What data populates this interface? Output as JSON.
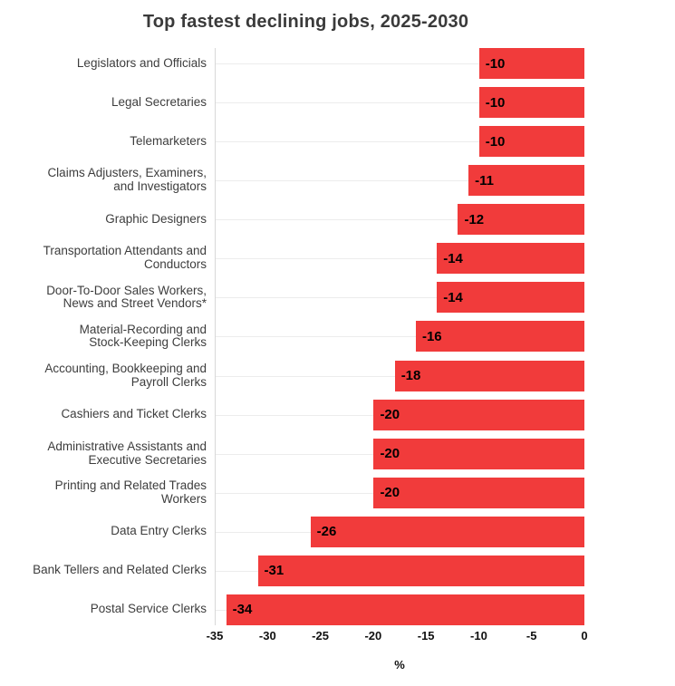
{
  "chart_data": {
    "type": "bar",
    "orientation": "horizontal",
    "title": "Top fastest declining jobs, 2025-2030",
    "xlabel": "%",
    "ylabel": "",
    "xlim": [
      -35,
      0
    ],
    "xticks": [
      -35,
      -30,
      -25,
      -20,
      -15,
      -10,
      -5,
      0
    ],
    "grid": "horizontal-category-gridlines",
    "legend": "none",
    "bar_color": "#f13b3b",
    "value_label_color": "#000000",
    "categories": [
      "Legislators and Officials",
      "Legal Secretaries",
      "Telemarketers",
      "Claims Adjusters, Examiners,\nand Investigators",
      "Graphic Designers",
      "Transportation Attendants and\nConductors",
      "Door-To-Door Sales Workers,\nNews and Street Vendors*",
      "Material-Recording and\nStock-Keeping Clerks",
      "Accounting, Bookkeeping and\nPayroll Clerks",
      "Cashiers and Ticket Clerks",
      "Administrative Assistants and\nExecutive Secretaries",
      "Printing and Related Trades\nWorkers",
      "Data Entry Clerks",
      "Bank Tellers and Related Clerks",
      "Postal Service Clerks"
    ],
    "values": [
      -10,
      -10,
      -10,
      -11,
      -12,
      -14,
      -14,
      -16,
      -18,
      -20,
      -20,
      -20,
      -26,
      -31,
      -34
    ],
    "bar_labels": [
      "-10",
      "-10",
      "-10",
      "-11",
      "-12",
      "-14",
      "-14",
      "-16",
      "-18",
      "-20",
      "-20",
      "-20",
      "-26",
      "-31",
      "-34"
    ]
  }
}
